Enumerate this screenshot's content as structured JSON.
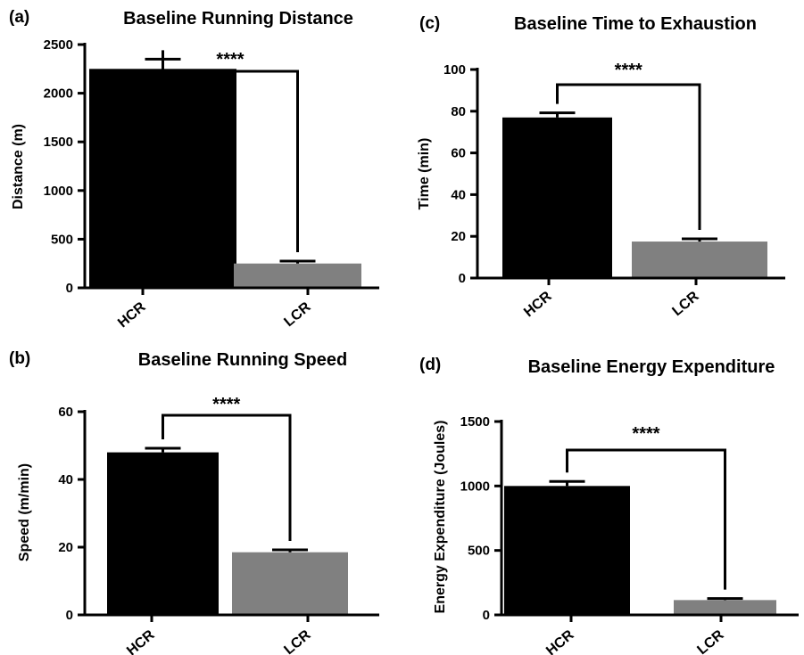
{
  "chart_data": [
    {
      "panel": "(a)",
      "type": "bar",
      "title": "Baseline Running Distance",
      "ylabel": "Distance (m)",
      "categories": [
        "HCR",
        "LCR"
      ],
      "values": [
        2250,
        250
      ],
      "errors": [
        100,
        25
      ],
      "yticks": [
        0,
        500,
        1000,
        1500,
        2000,
        2500
      ],
      "ylim": [
        0,
        2700
      ],
      "significance": "****",
      "bar_colors": [
        "#000000",
        "#808080"
      ]
    },
    {
      "panel": "(b)",
      "type": "bar",
      "title": "Baseline Running Speed",
      "ylabel": "Speed (m/min)",
      "categories": [
        "HCR",
        "LCR"
      ],
      "values": [
        48,
        18.5
      ],
      "errors": [
        1.2,
        0.7
      ],
      "yticks": [
        0,
        20,
        40,
        60
      ],
      "ylim": [
        0,
        60
      ],
      "significance": "****",
      "bar_colors": [
        "#000000",
        "#808080"
      ]
    },
    {
      "panel": "(c)",
      "type": "bar",
      "title": "Baseline Time to Exhaustion",
      "ylabel": "Time (min)",
      "categories": [
        "HCR",
        "LCR"
      ],
      "values": [
        77,
        17.5
      ],
      "errors": [
        2.2,
        1.3
      ],
      "yticks": [
        0,
        20,
        40,
        60,
        80,
        100
      ],
      "ylim": [
        0,
        100
      ],
      "significance": "****",
      "bar_colors": [
        "#000000",
        "#808080"
      ]
    },
    {
      "panel": "(d)",
      "type": "bar",
      "title": "Baseline Energy Expenditure",
      "ylabel": "Energy Expenditure (Joules)",
      "categories": [
        "HCR",
        "LCR"
      ],
      "values": [
        1000,
        115
      ],
      "errors": [
        35,
        12
      ],
      "yticks": [
        0,
        500,
        1000,
        1500
      ],
      "ylim": [
        0,
        1500
      ],
      "significance": "****",
      "bar_colors": [
        "#000000",
        "#808080"
      ]
    }
  ]
}
